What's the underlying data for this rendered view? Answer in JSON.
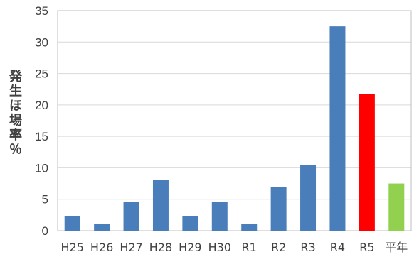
{
  "chart_data": {
    "type": "bar",
    "title": "",
    "xlabel": "",
    "ylabel": "発生ほ場率％",
    "categories": [
      "H25",
      "H26",
      "H27",
      "H28",
      "H29",
      "H30",
      "R1",
      "R2",
      "R3",
      "R4",
      "R5",
      "平年"
    ],
    "values": [
      2.3,
      1.1,
      4.6,
      8.1,
      2.3,
      4.6,
      1.1,
      7.0,
      10.5,
      32.5,
      21.7,
      7.5
    ],
    "bar_colors": [
      "#4a7ebb",
      "#4a7ebb",
      "#4a7ebb",
      "#4a7ebb",
      "#4a7ebb",
      "#4a7ebb",
      "#4a7ebb",
      "#4a7ebb",
      "#4a7ebb",
      "#4a7ebb",
      "#ff0000",
      "#92d050"
    ],
    "ylim": [
      0,
      35
    ],
    "yticks": [
      0,
      5,
      10,
      15,
      20,
      25,
      30,
      35
    ],
    "grid": true,
    "legend": "none"
  }
}
